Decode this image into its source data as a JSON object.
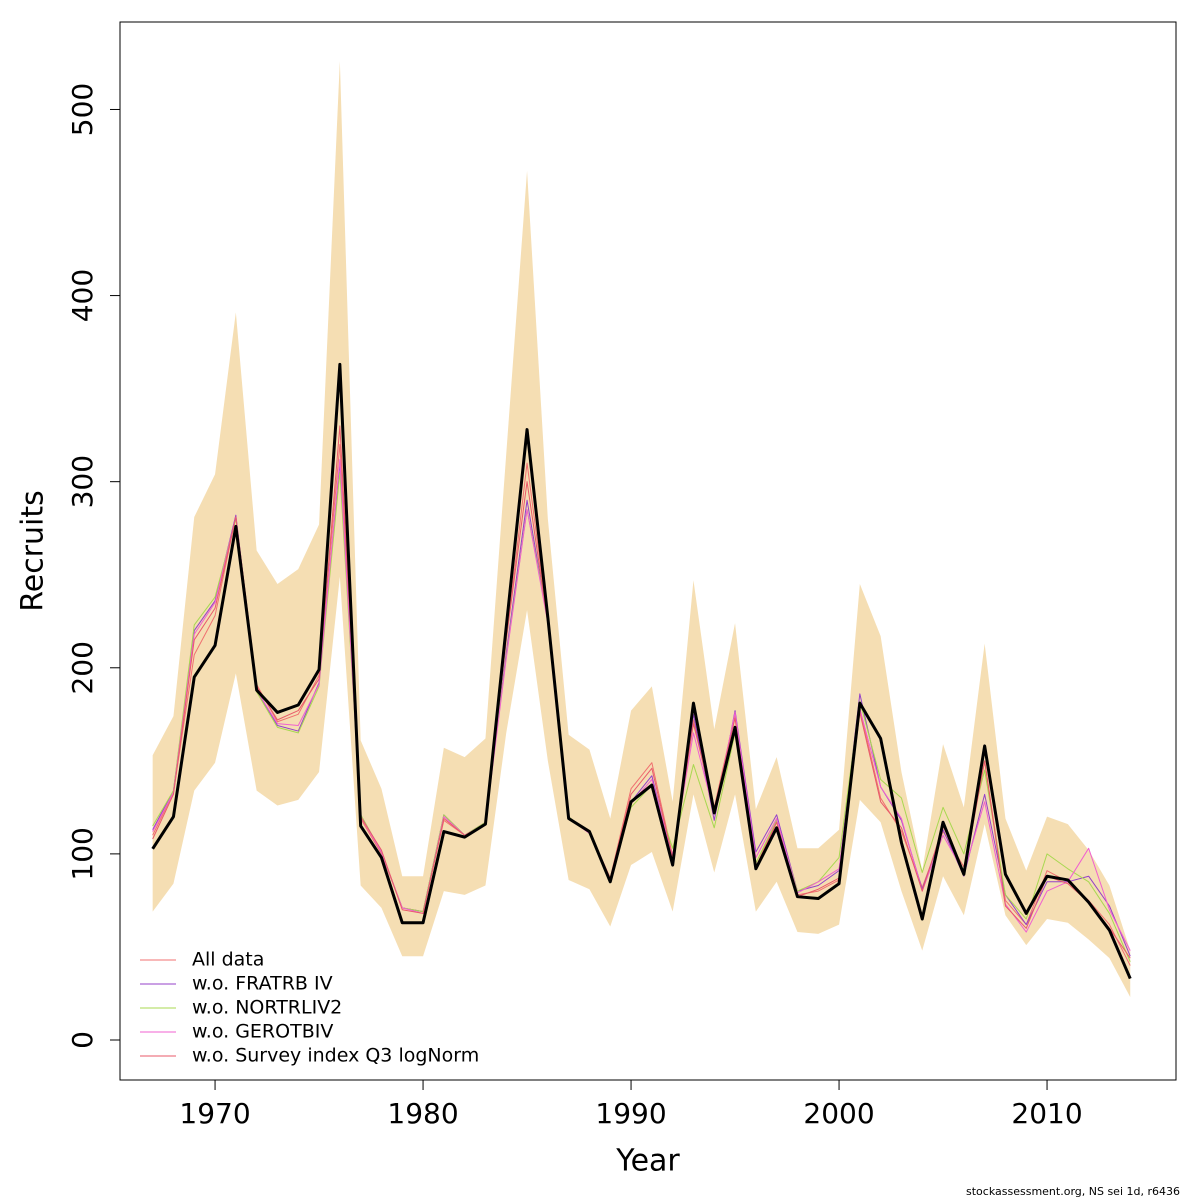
{
  "chart_data": {
    "type": "line",
    "x_label": "Year",
    "y_label": "Recruits",
    "footer": "stockassessment.org, NS  sei  1d, r6436",
    "x": [
      1967,
      1968,
      1969,
      1970,
      1971,
      1972,
      1973,
      1974,
      1975,
      1976,
      1977,
      1978,
      1979,
      1980,
      1981,
      1982,
      1983,
      1984,
      1985,
      1986,
      1987,
      1988,
      1989,
      1990,
      1991,
      1992,
      1993,
      1994,
      1995,
      1996,
      1997,
      1998,
      1999,
      2000,
      2001,
      2002,
      2003,
      2004,
      2005,
      2006,
      2007,
      2008,
      2009,
      2010,
      2011,
      2012,
      2013,
      2014
    ],
    "xlim": [
      1965.43,
      2016.2
    ],
    "xticks": [
      1970,
      1980,
      1990,
      2000,
      2010
    ],
    "ylim": [
      -21.5,
      547
    ],
    "yticks": [
      0,
      100,
      200,
      300,
      400,
      500
    ],
    "band": {
      "color": "#F5DEB3",
      "upper": [
        153,
        174,
        281,
        304,
        391,
        263,
        245,
        253,
        277,
        526,
        161,
        135,
        88,
        88,
        157,
        152,
        162,
        315,
        467,
        280,
        164,
        156,
        119,
        177,
        190,
        128,
        247,
        167,
        224,
        124,
        152,
        103,
        103,
        113,
        245,
        217,
        144,
        91,
        159,
        125,
        213,
        119,
        91,
        120,
        116,
        102,
        83,
        48
      ],
      "lower": [
        69,
        84,
        134,
        149,
        197,
        134,
        126,
        129,
        144,
        249,
        83,
        71,
        45,
        45,
        80,
        78,
        83,
        165,
        231,
        150,
        86,
        81,
        61,
        94,
        101,
        69,
        132,
        90,
        132,
        69,
        85,
        58,
        57,
        62,
        129,
        117,
        80,
        48,
        88,
        67,
        116,
        67,
        51,
        65,
        63,
        54,
        44,
        23
      ]
    },
    "estimate": {
      "color": "#000000",
      "values": [
        102.7,
        120,
        195,
        212,
        276,
        188,
        176,
        180,
        199,
        363,
        115,
        98,
        63,
        63,
        112,
        109,
        116,
        222,
        328,
        227,
        119,
        112,
        85,
        128,
        137,
        94,
        181,
        122,
        168,
        92,
        114,
        77,
        76,
        84,
        181,
        162,
        106,
        65,
        117,
        89,
        158,
        89,
        68,
        88,
        86,
        74,
        59,
        33
      ]
    },
    "series": [
      {
        "name": "All data",
        "color": "#F07070",
        "values": [
          110,
          133,
          207,
          228,
          281,
          191,
          171,
          175,
          196,
          320,
          119,
          100,
          71,
          69,
          118,
          110,
          117,
          215,
          310,
          225,
          119,
          112,
          87,
          135,
          149,
          99,
          172,
          125,
          175,
          93,
          118,
          78,
          80,
          86,
          178,
          130,
          112,
          82,
          112,
          93,
          150,
          75,
          62,
          91,
          85,
          75,
          62,
          40
        ]
      },
      {
        "name": "w.o. FRATRB IV",
        "color": "#9440C8",
        "values": [
          113,
          134,
          220,
          236,
          282,
          188,
          169,
          166,
          192,
          310,
          121,
          101,
          71,
          69,
          121,
          110,
          117,
          208,
          290,
          225,
          120,
          111,
          87,
          128,
          142,
          97,
          175,
          118,
          177,
          101,
          121,
          80,
          83,
          91,
          186,
          136,
          118,
          81,
          113,
          88,
          132,
          78,
          62,
          85,
          85,
          88,
          72,
          45
        ]
      },
      {
        "name": "w.o. NORTRLIV2",
        "color": "#A8D850",
        "values": [
          115,
          134,
          223,
          238,
          280,
          187,
          168,
          165,
          190,
          305,
          121,
          101,
          71,
          69,
          121,
          110,
          117,
          206,
          285,
          226,
          120,
          111,
          87,
          125,
          137,
          103,
          148,
          114,
          165,
          95,
          118,
          80,
          85,
          98,
          182,
          140,
          130,
          90,
          125,
          100,
          145,
          78,
          65,
          100,
          92,
          85,
          68,
          42
        ]
      },
      {
        "name": "w.o. GEROTBIV",
        "color": "#F060D0",
        "values": [
          112,
          133,
          218,
          235,
          281,
          188,
          170,
          169,
          191,
          312,
          120,
          101,
          71,
          68,
          120,
          110,
          116,
          205,
          285,
          224,
          119,
          111,
          86,
          127,
          140,
          99,
          165,
          122,
          176,
          98,
          119,
          79,
          85,
          92,
          178,
          136,
          119,
          80,
          110,
          90,
          128,
          73,
          58,
          80,
          85,
          103,
          70,
          48
        ]
      },
      {
        "name": "w.o. Survey index Q3 logNorm",
        "color": "#E85A6A",
        "values": [
          108,
          132,
          215,
          232,
          281,
          190,
          172,
          177,
          194,
          330,
          120,
          102,
          70,
          68,
          119,
          110,
          116,
          215,
          300,
          224,
          119,
          112,
          87,
          132,
          146,
          98,
          170,
          124,
          173,
          92,
          117,
          77,
          81,
          87,
          176,
          128,
          114,
          80,
          115,
          89,
          150,
          72,
          60,
          88,
          84,
          74,
          60,
          44
        ]
      }
    ]
  }
}
